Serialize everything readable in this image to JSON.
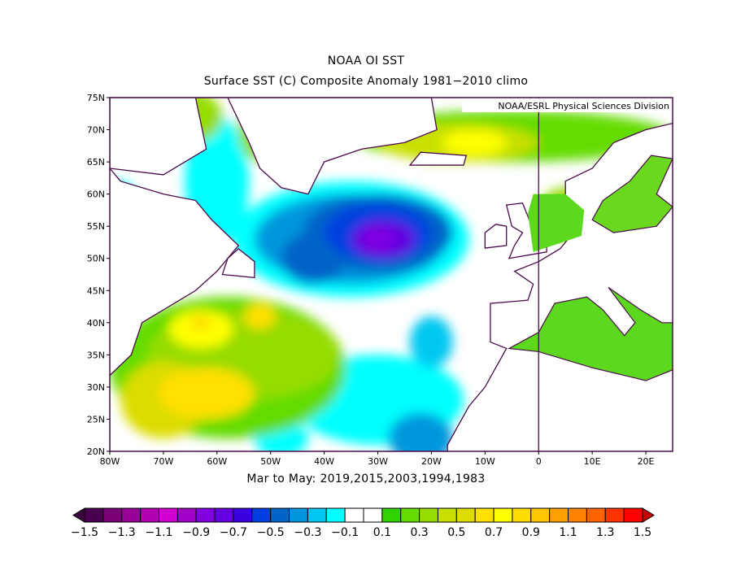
{
  "title": "NOAA OI SST",
  "subtitle": "Surface SST (C) Composite Anomaly 1981−2010 climo",
  "credit": "NOAA/ESRL Physical Sciences Division",
  "caption": "Mar to May: 2019,2015,2003,1994,1983",
  "chart_data": {
    "type": "heatmap",
    "variable": "Surface SST anomaly (C)",
    "x_ticks": [
      "80W",
      "70W",
      "60W",
      "50W",
      "40W",
      "30W",
      "20W",
      "10W",
      "0",
      "10E",
      "20E"
    ],
    "y_ticks": [
      "20N",
      "25N",
      "30N",
      "35N",
      "40N",
      "45N",
      "50N",
      "55N",
      "60N",
      "65N",
      "70N",
      "75N"
    ],
    "lon_range": [
      -80,
      25
    ],
    "lat_range": [
      20,
      75
    ],
    "colorbar": {
      "labels": [
        "−1.5",
        "−1.3",
        "−1.1",
        "−0.9",
        "−0.7",
        "−0.5",
        "−0.3",
        "−0.1",
        "0.1",
        "0.3",
        "0.5",
        "0.7",
        "0.9",
        "1.1",
        "1.3",
        "1.5"
      ],
      "range": [
        -1.5,
        1.5
      ],
      "step": 0.1,
      "colors": [
        "#4a0050",
        "#7a0078",
        "#980098",
        "#b000b0",
        "#d000d0",
        "#a000c8",
        "#8000e0",
        "#6400e0",
        "#3c00e0",
        "#0040e0",
        "#0064c8",
        "#0096dc",
        "#00c8f0",
        "#00ffff",
        "#ffffff",
        "#ffffff",
        "#32d200",
        "#64dc00",
        "#96dc00",
        "#c8e000",
        "#dcdc00",
        "#ffe000",
        "#ffff00",
        "#ffdc00",
        "#ffc800",
        "#ffa000",
        "#ff8200",
        "#ff6400",
        "#ff3200",
        "#ff0000"
      ],
      "under_color": "#3c003c",
      "over_color": "#c80000"
    },
    "coast_color": "#4a0a4a"
  }
}
